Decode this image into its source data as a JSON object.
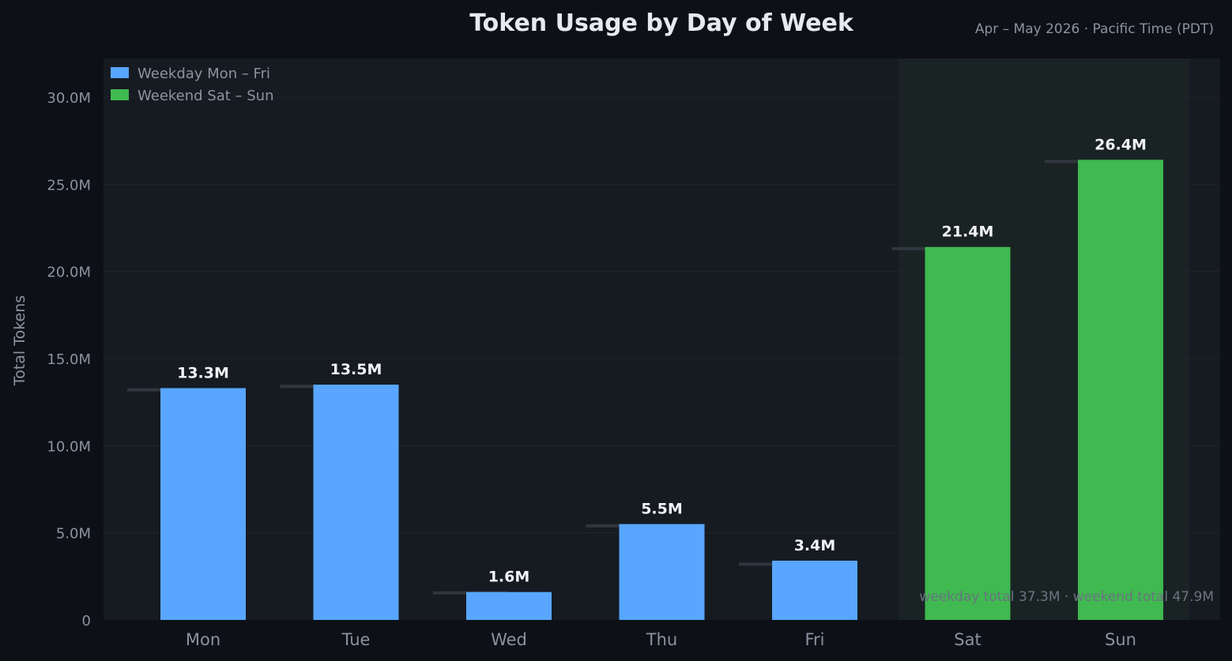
{
  "chart_data": {
    "type": "bar",
    "title": "Token Usage by Day of Week",
    "subtitle": "Apr – May 2026  ·  Pacific Time (PDT)",
    "ylabel": "Total Tokens",
    "xlabel": "",
    "categories": [
      "Mon",
      "Tue",
      "Wed",
      "Thu",
      "Fri",
      "Sat",
      "Sun"
    ],
    "values": [
      13.3,
      13.5,
      1.6,
      5.5,
      3.4,
      21.4,
      26.4
    ],
    "value_labels": [
      "13.3M",
      "13.5M",
      "1.6M",
      "5.5M",
      "3.4M",
      "21.4M",
      "26.4M"
    ],
    "reference_values": [
      13.2,
      13.4,
      1.55,
      5.4,
      3.2,
      21.3,
      26.3
    ],
    "groups": [
      "weekday",
      "weekday",
      "weekday",
      "weekday",
      "weekday",
      "weekend",
      "weekend"
    ],
    "ylim": [
      0,
      32
    ],
    "yticks": [
      0,
      5,
      10,
      15,
      20,
      25,
      30
    ],
    "ytick_labels": [
      "0",
      "5.0M",
      "10.0M",
      "15.0M",
      "20.0M",
      "25.0M",
      "30.0M"
    ],
    "highlight_region": [
      "Sat",
      "Sun"
    ],
    "grid": true,
    "legend": {
      "placement": "top-left",
      "entries": [
        {
          "key": "weekday",
          "label": "Weekday  Mon – Fri",
          "color": "#58a6ff"
        },
        {
          "key": "weekend",
          "label": "Weekend  Sat – Sun",
          "color": "#3fb950"
        }
      ]
    },
    "footer": "weekday total 37.3M  ·  weekend total 47.9M",
    "colors": {
      "weekday": "#58a6ff",
      "weekend": "#3fb950",
      "plot_background": "#161b22",
      "highlight_background": "#1a2324",
      "reference_line": "#30363d",
      "grid": "#1f242c"
    }
  }
}
